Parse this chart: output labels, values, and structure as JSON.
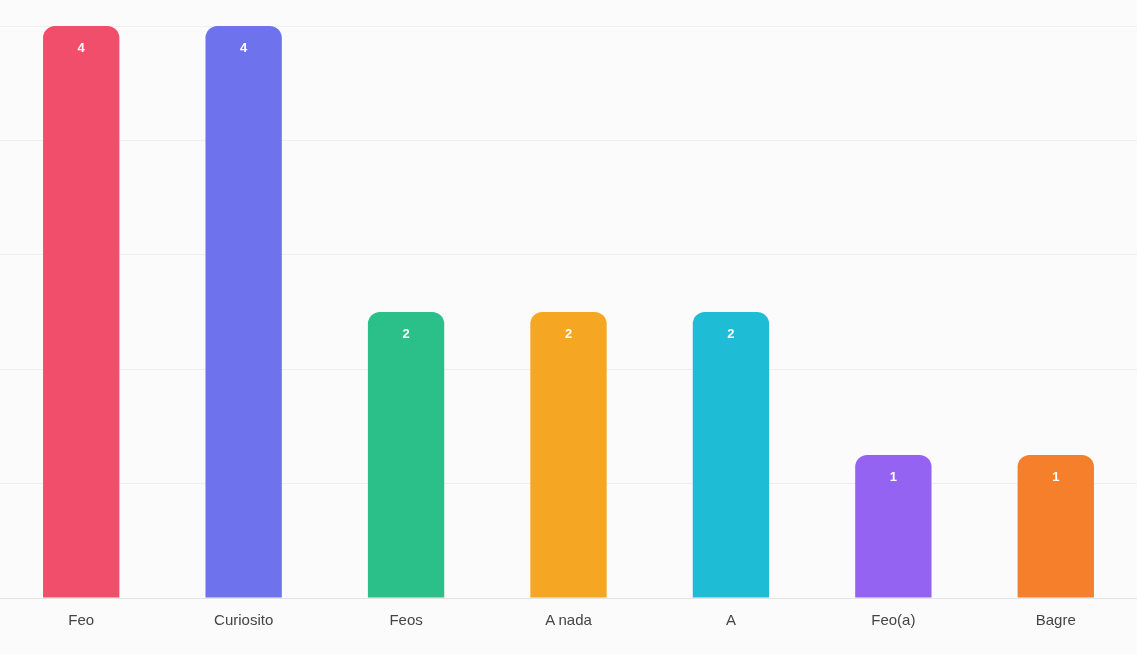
{
  "chart_data": {
    "type": "bar",
    "categories": [
      "Feo",
      "Curiosito",
      "Feos",
      "A nada",
      "A",
      "Feo(a)",
      "Bagre"
    ],
    "values": [
      4,
      4,
      2,
      2,
      2,
      1,
      1
    ],
    "colors": [
      "#f04e6a",
      "#6e72ec",
      "#2bbf8a",
      "#f5a623",
      "#1fbcd6",
      "#9463f2",
      "#f57f2a"
    ],
    "ylim": [
      0,
      4
    ],
    "yticks": [
      {
        "value": 0,
        "label": null
      },
      {
        "value": 0.8,
        "label": null
      },
      {
        "value": 1.6,
        "label": null
      },
      {
        "value": 2.4,
        "label": null
      },
      {
        "value": 3.2,
        "label": null
      },
      {
        "value": 4,
        "label": null
      }
    ],
    "grid": "y",
    "tick_labels": "x",
    "data_labels": true
  }
}
